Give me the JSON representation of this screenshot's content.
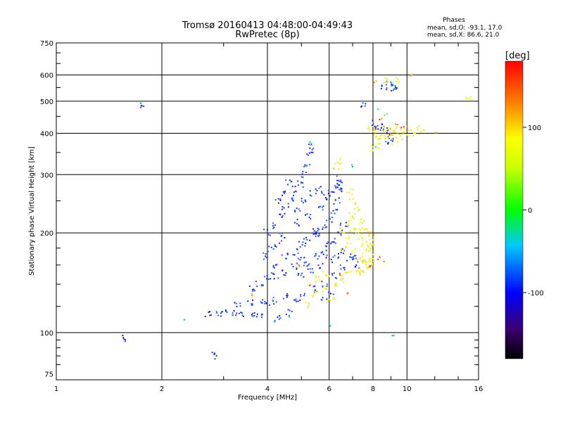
{
  "header": {
    "title_line1": "Tromsø 20160413 04:48:00-04:49:43",
    "title_line2": "RwPretec (8p)",
    "phase_title": "Phases",
    "phase_o": "mean, sd,O: -93.1, 17.0",
    "phase_x": "mean, sd,X:  86.6, 21.0"
  },
  "colorbar": {
    "unit": "[deg]",
    "ticks": [
      "100",
      "0",
      "-100"
    ],
    "range": [
      -180,
      180
    ]
  },
  "chart_data": {
    "type": "scatter",
    "xlabel": "Frequency [MHz]",
    "ylabel": "Stationary phase Virtual Height [km]",
    "xscale": "log",
    "yscale": "log",
    "xlim": [
      1,
      16
    ],
    "ylim": [
      72,
      750
    ],
    "xticks": [
      1,
      2,
      4,
      6,
      8,
      10,
      16
    ],
    "xtick_labels": [
      "1",
      "2",
      "4",
      "6",
      "8",
      "10",
      "16"
    ],
    "yticks": [
      75,
      100,
      200,
      300,
      400,
      500,
      600,
      750
    ],
    "ytick_labels": [
      "75",
      "100",
      "200",
      "300",
      "400",
      "500",
      "600",
      "750"
    ],
    "grid": true,
    "series": [
      {
        "color_hint": "blue (approx. -100 deg)",
        "points": [
          [
            2.7,
            114
          ],
          [
            2.9,
            114
          ],
          [
            3.0,
            115
          ],
          [
            3.2,
            114
          ],
          [
            3.4,
            113
          ],
          [
            3.6,
            113
          ],
          [
            3.8,
            114
          ],
          [
            3.3,
            122
          ],
          [
            3.6,
            123
          ],
          [
            3.9,
            124
          ],
          [
            4.0,
            120
          ],
          [
            4.2,
            125
          ],
          [
            4.5,
            128
          ],
          [
            4.8,
            125
          ],
          [
            5.0,
            128
          ],
          [
            5.4,
            135
          ],
          [
            5.8,
            140
          ],
          [
            6.2,
            148
          ],
          [
            6.6,
            158
          ],
          [
            7.0,
            170
          ],
          [
            3.6,
            135
          ],
          [
            3.8,
            140
          ],
          [
            4.0,
            145
          ],
          [
            4.2,
            148
          ],
          [
            4.5,
            152
          ],
          [
            4.8,
            158
          ],
          [
            5.0,
            165
          ],
          [
            5.2,
            160
          ],
          [
            5.5,
            170
          ],
          [
            5.8,
            175
          ],
          [
            6.0,
            185
          ],
          [
            6.2,
            190
          ],
          [
            6.4,
            200
          ],
          [
            6.6,
            210
          ],
          [
            4.2,
            160
          ],
          [
            4.5,
            170
          ],
          [
            4.8,
            175
          ],
          [
            5.0,
            185
          ],
          [
            5.2,
            190
          ],
          [
            5.5,
            200
          ],
          [
            5.8,
            210
          ],
          [
            6.0,
            220
          ],
          [
            6.2,
            230
          ],
          [
            6.3,
            250
          ],
          [
            6.4,
            270
          ],
          [
            6.4,
            290
          ],
          [
            4.0,
            200
          ],
          [
            4.2,
            210
          ],
          [
            4.4,
            225
          ],
          [
            4.5,
            240
          ],
          [
            4.7,
            255
          ],
          [
            4.8,
            270
          ],
          [
            5.0,
            280
          ],
          [
            5.1,
            300
          ],
          [
            5.2,
            320
          ],
          [
            5.3,
            345
          ],
          [
            5.3,
            365
          ],
          [
            4.9,
            235
          ],
          [
            5.1,
            250
          ],
          [
            5.4,
            265
          ],
          [
            5.6,
            270
          ],
          [
            5.7,
            240
          ],
          [
            5.5,
            200
          ],
          [
            5.9,
            255
          ],
          [
            6.1,
            265
          ],
          [
            6.3,
            275
          ],
          [
            6.5,
            285
          ],
          [
            4.3,
            250
          ],
          [
            4.4,
            265
          ],
          [
            4.6,
            285
          ],
          [
            4.9,
            215
          ],
          [
            5.2,
            225
          ],
          [
            5.5,
            205
          ],
          [
            5.0,
            150
          ],
          [
            5.3,
            155
          ],
          [
            5.7,
            160
          ],
          [
            6.0,
            165
          ],
          [
            6.3,
            170
          ],
          [
            6.6,
            175
          ],
          [
            6.9,
            165
          ],
          [
            7.2,
            160
          ],
          [
            3.9,
            170
          ],
          [
            4.1,
            178
          ],
          [
            4.3,
            185
          ],
          [
            4.4,
            195
          ],
          [
            8.6,
            555
          ],
          [
            8.9,
            560
          ],
          [
            9.1,
            550
          ],
          [
            9.3,
            545
          ],
          [
            8.1,
            430
          ],
          [
            8.3,
            420
          ],
          [
            8.5,
            415
          ],
          [
            8.7,
            405
          ],
          [
            7.5,
            490
          ],
          [
            8.9,
            380
          ],
          [
            9.0,
            390
          ],
          [
            1.55,
            96
          ],
          [
            1.75,
            488
          ],
          [
            2.85,
            85
          ],
          [
            4.3,
            110
          ],
          [
            4.6,
            115
          ],
          [
            5.8,
            125
          ],
          [
            6.1,
            130
          ]
        ]
      },
      {
        "color_hint": "yellow (approx. +100 deg)",
        "points": [
          [
            6.6,
            180
          ],
          [
            6.8,
            190
          ],
          [
            7.0,
            200
          ],
          [
            7.2,
            205
          ],
          [
            7.4,
            195
          ],
          [
            7.6,
            185
          ],
          [
            7.8,
            180
          ],
          [
            8.0,
            175
          ],
          [
            7.0,
            175
          ],
          [
            7.3,
            170
          ],
          [
            7.6,
            165
          ],
          [
            7.8,
            160
          ],
          [
            7.2,
            150
          ],
          [
            7.5,
            155
          ],
          [
            7.8,
            158
          ],
          [
            8.0,
            165
          ],
          [
            6.5,
            205
          ],
          [
            6.8,
            215
          ],
          [
            7.0,
            225
          ],
          [
            7.2,
            235
          ],
          [
            7.0,
            250
          ],
          [
            6.9,
            265
          ],
          [
            7.4,
            215
          ],
          [
            7.6,
            205
          ],
          [
            7.9,
            195
          ],
          [
            8.0,
            188
          ],
          [
            5.6,
            145
          ],
          [
            5.9,
            150
          ],
          [
            6.2,
            140
          ],
          [
            6.5,
            145
          ],
          [
            6.8,
            150
          ],
          [
            5.5,
            130
          ],
          [
            5.8,
            135
          ],
          [
            6.1,
            128
          ],
          [
            5.2,
            122
          ],
          [
            7.9,
            410
          ],
          [
            8.1,
            400
          ],
          [
            8.3,
            390
          ],
          [
            8.6,
            395
          ],
          [
            8.8,
            400
          ],
          [
            9.0,
            405
          ],
          [
            9.4,
            410
          ],
          [
            9.8,
            405
          ],
          [
            10.2,
            400
          ],
          [
            10.6,
            410
          ],
          [
            11.0,
            405
          ],
          [
            8.0,
            360
          ],
          [
            8.2,
            365
          ],
          [
            9.2,
            380
          ],
          [
            9.6,
            390
          ],
          [
            8.7,
            580
          ],
          [
            9.3,
            575
          ],
          [
            6.3,
            320
          ],
          [
            6.5,
            330
          ],
          [
            15.0,
            515
          ]
        ]
      },
      {
        "color_hint": "orange/red (approx. +120 to +180 deg)",
        "points": [
          [
            8.6,
            420
          ],
          [
            8.9,
            410
          ],
          [
            9.3,
            425
          ],
          [
            9.7,
            415
          ],
          [
            10.0,
            420
          ],
          [
            12.1,
            400
          ],
          [
            8.1,
            415
          ],
          [
            8.4,
            440
          ],
          [
            9.0,
            395
          ],
          [
            8.1,
            575
          ],
          [
            10.3,
            595
          ],
          [
            7.5,
            165
          ],
          [
            7.8,
            160
          ],
          [
            6.4,
            150
          ],
          [
            4.9,
            160
          ],
          [
            5.3,
            140
          ],
          [
            3.6,
            130
          ],
          [
            6.8,
            132
          ],
          [
            8.3,
            168
          ],
          [
            8.6,
            165
          ],
          [
            7.9,
            200
          ]
        ]
      },
      {
        "color_hint": "cyan/green (approx. 0 to -40 deg)",
        "points": [
          [
            8.3,
            470
          ],
          [
            8.7,
            455
          ],
          [
            9.2,
            560
          ],
          [
            9.0,
            568
          ],
          [
            6.0,
            105
          ],
          [
            4.2,
            108
          ],
          [
            4.6,
            112
          ],
          [
            5.3,
            375
          ],
          [
            8.2,
            365
          ],
          [
            7.0,
            320
          ],
          [
            9.1,
            98
          ],
          [
            2.3,
            110
          ]
        ]
      }
    ]
  }
}
